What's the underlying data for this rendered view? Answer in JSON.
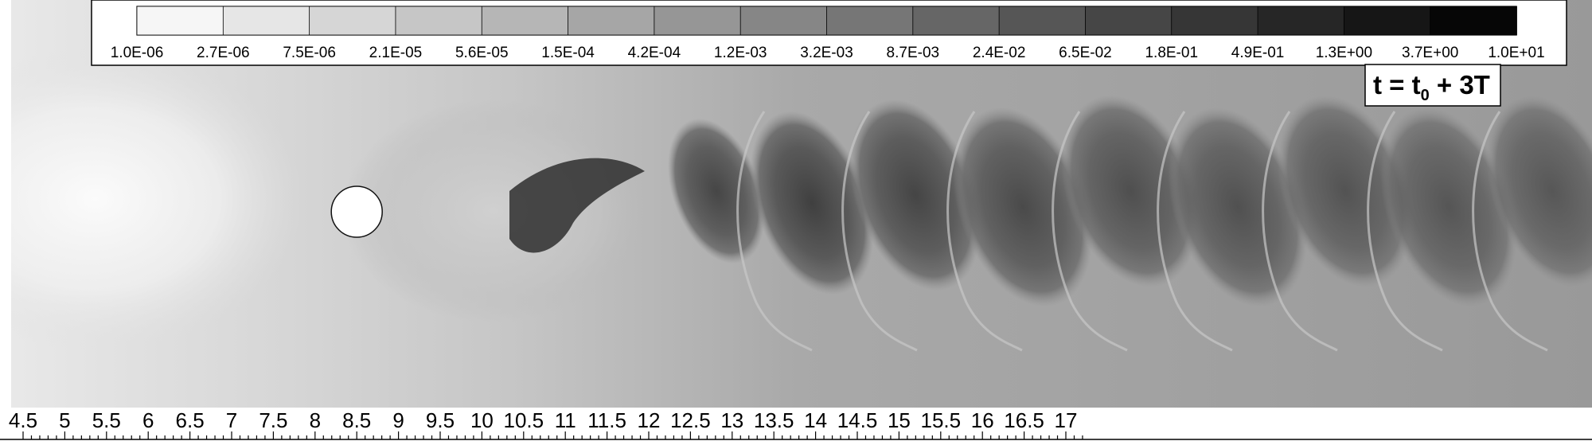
{
  "chart_data": {
    "type": "heatmap",
    "colormap": "grayscale",
    "colorbar": {
      "tick_labels": [
        "1.0E-06",
        "2.7E-06",
        "7.5E-06",
        "2.1E-05",
        "5.6E-05",
        "1.5E-04",
        "4.2E-04",
        "1.2E-03",
        "3.2E-03",
        "8.7E-03",
        "2.4E-02",
        "6.5E-02",
        "1.8E-01",
        "4.9E-01",
        "1.3E+00",
        "3.7E+00",
        "1.0E+01"
      ],
      "scale": "log",
      "range": [
        1e-06,
        10.0
      ],
      "placement": "top"
    },
    "x_axis": {
      "range": [
        4.45,
        17.25
      ],
      "tick_labels": [
        "4.5",
        "5",
        "5.5",
        "6",
        "6.5",
        "7",
        "7.5",
        "8",
        "8.5",
        "9",
        "9.5",
        "10",
        "10.5",
        "11",
        "11.5",
        "12",
        "12.5",
        "13",
        "13.5",
        "14",
        "14.5",
        "15",
        "15.5",
        "16",
        "16.5",
        "17"
      ],
      "minor_step": 0.1
    },
    "cylinder": {
      "center_x": 8.5
    },
    "annotation": {
      "text_main": "t = t",
      "text_sub": "0",
      "text_tail": " + 3T",
      "placement": "top-right"
    }
  }
}
